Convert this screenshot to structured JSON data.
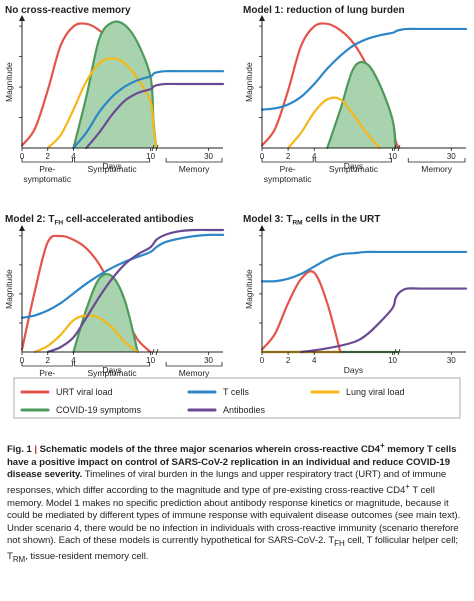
{
  "colors": {
    "urt": "#e5544a",
    "tcells": "#2c86c8",
    "lung": "#f5b719",
    "covid": "#4f9a5a",
    "covid_fill": "#a9d3ae",
    "antibodies": "#6b4a94",
    "axis": "#231f20"
  },
  "chart_data": [
    {
      "type": "line",
      "title": "No cross-reactive memory",
      "ylabel": "Magnitude",
      "xlabel": "Days",
      "xlim": [
        0,
        35
      ],
      "ylim": [
        0,
        1
      ],
      "x_ticks": [
        "0",
        "2",
        "4",
        "10",
        "30"
      ],
      "phases": [
        "Pre-\nsymptomatic",
        "Symptomatic",
        "Memory"
      ],
      "series": [
        {
          "key": "urt",
          "x": [
            0,
            1,
            2,
            3,
            4,
            5,
            6,
            7,
            8,
            9,
            10,
            11,
            12
          ],
          "values": [
            0.02,
            0.15,
            0.45,
            0.8,
            0.95,
            0.97,
            0.92,
            0.82,
            0.65,
            0.42,
            0.2,
            0.06,
            0.0
          ]
        },
        {
          "key": "covid",
          "x": [
            4,
            5,
            6,
            7,
            8,
            9,
            10,
            11,
            12
          ],
          "values": [
            0.0,
            0.4,
            0.85,
            0.98,
            0.96,
            0.82,
            0.55,
            0.2,
            0.0
          ]
        },
        {
          "key": "lung",
          "x": [
            2,
            3,
            4,
            5,
            6,
            7,
            8,
            9,
            10,
            11,
            12
          ],
          "values": [
            0.0,
            0.1,
            0.3,
            0.52,
            0.66,
            0.7,
            0.66,
            0.54,
            0.36,
            0.16,
            0.0
          ]
        },
        {
          "key": "tcells",
          "x": [
            4,
            5,
            6,
            7,
            8,
            9,
            10,
            11,
            12,
            15,
            20,
            25,
            30,
            35
          ],
          "values": [
            0.0,
            0.12,
            0.28,
            0.4,
            0.48,
            0.53,
            0.56,
            0.58,
            0.59,
            0.6,
            0.6,
            0.6,
            0.6,
            0.6
          ]
        },
        {
          "key": "antibodies",
          "x": [
            5,
            6,
            7,
            8,
            9,
            10,
            11,
            12,
            15,
            20,
            25,
            30,
            35
          ],
          "values": [
            0.0,
            0.12,
            0.26,
            0.37,
            0.43,
            0.46,
            0.48,
            0.49,
            0.5,
            0.5,
            0.5,
            0.5,
            0.5
          ]
        }
      ]
    },
    {
      "type": "line",
      "title": "Model 1: reduction of lung burden",
      "ylabel": "Magnitude",
      "xlabel": "Days",
      "xlim": [
        0,
        35
      ],
      "ylim": [
        0,
        1
      ],
      "x_ticks": [
        "0",
        "2",
        "4",
        "10",
        "30"
      ],
      "phases": [
        "Pre-\nsymptomatic",
        "Symptomatic",
        "Memory"
      ],
      "series": [
        {
          "key": "urt",
          "x": [
            0,
            1,
            2,
            3,
            4,
            5,
            6,
            7,
            8,
            9,
            10,
            11,
            12
          ],
          "values": [
            0.02,
            0.15,
            0.45,
            0.8,
            0.95,
            0.97,
            0.92,
            0.82,
            0.65,
            0.42,
            0.2,
            0.06,
            0.0
          ]
        },
        {
          "key": "covid",
          "x": [
            5,
            6,
            7,
            8,
            9,
            10,
            11
          ],
          "values": [
            0.0,
            0.3,
            0.62,
            0.66,
            0.5,
            0.22,
            0.0
          ]
        },
        {
          "key": "lung",
          "x": [
            2,
            3,
            4,
            5,
            6,
            7,
            8,
            9
          ],
          "values": [
            0.0,
            0.12,
            0.28,
            0.38,
            0.38,
            0.26,
            0.12,
            0.0
          ]
        },
        {
          "key": "tcells",
          "x": [
            0,
            1,
            2,
            3,
            4,
            5,
            6,
            7,
            8,
            9,
            10,
            11,
            12,
            15,
            20,
            25,
            30,
            35
          ],
          "values": [
            0.3,
            0.31,
            0.34,
            0.4,
            0.5,
            0.62,
            0.72,
            0.8,
            0.85,
            0.88,
            0.9,
            0.91,
            0.92,
            0.93,
            0.93,
            0.93,
            0.93,
            0.93
          ]
        }
      ]
    },
    {
      "type": "line",
      "title": "Model 2: ",
      "title_main": "T",
      "title_sub": "FH",
      "title_rest": " cell-accelerated antibodies",
      "ylabel": "Magnitude",
      "xlabel": "Days",
      "xlim": [
        0,
        35
      ],
      "ylim": [
        0,
        1
      ],
      "x_ticks": [
        "0",
        "2",
        "4",
        "10",
        "30"
      ],
      "phases": [
        "Pre-\nsymptomatic",
        "Symptomatic",
        "Memory"
      ],
      "series": [
        {
          "key": "urt",
          "x": [
            0,
            1,
            2,
            3,
            4,
            5,
            6,
            7,
            8,
            9,
            10
          ],
          "values": [
            0.02,
            0.5,
            0.9,
            0.95,
            0.92,
            0.85,
            0.72,
            0.52,
            0.3,
            0.1,
            0.0
          ]
        },
        {
          "key": "covid",
          "x": [
            4,
            5,
            6,
            7,
            8,
            9
          ],
          "values": [
            0.0,
            0.35,
            0.6,
            0.62,
            0.42,
            0.0
          ]
        },
        {
          "key": "lung",
          "x": [
            1,
            2,
            3,
            4,
            5,
            6,
            7,
            8,
            9
          ],
          "values": [
            0.0,
            0.05,
            0.14,
            0.26,
            0.3,
            0.28,
            0.2,
            0.08,
            0.0
          ]
        },
        {
          "key": "tcells",
          "x": [
            0,
            1,
            2,
            3,
            4,
            5,
            6,
            7,
            8,
            9,
            10,
            12,
            15,
            20,
            25,
            30,
            35
          ],
          "values": [
            0.28,
            0.3,
            0.34,
            0.4,
            0.48,
            0.56,
            0.63,
            0.69,
            0.74,
            0.78,
            0.82,
            0.86,
            0.9,
            0.93,
            0.95,
            0.96,
            0.96
          ]
        },
        {
          "key": "antibodies",
          "x": [
            2,
            3,
            4,
            5,
            6,
            7,
            8,
            9,
            10,
            12,
            15,
            20,
            25,
            30,
            35
          ],
          "values": [
            0.0,
            0.04,
            0.12,
            0.28,
            0.45,
            0.6,
            0.72,
            0.8,
            0.86,
            0.92,
            0.96,
            0.99,
            1.0,
            1.0,
            1.0
          ]
        }
      ]
    },
    {
      "type": "line",
      "title": "Model 3: ",
      "title_main": "T",
      "title_sub": "RM",
      "title_rest": " cells in the URT",
      "ylabel": "Magnitude",
      "xlabel": "Days",
      "xlim": [
        0,
        35
      ],
      "ylim": [
        0,
        1
      ],
      "x_ticks": [
        "0",
        "2",
        "4",
        "10",
        "30"
      ],
      "phases": [],
      "series": [
        {
          "key": "covid",
          "x": [
            0,
            12
          ],
          "values": [
            0.0,
            0.0
          ]
        },
        {
          "key": "lung",
          "x": [
            0,
            6
          ],
          "values": [
            0.0,
            0.0
          ]
        },
        {
          "key": "urt",
          "x": [
            0,
            1,
            2,
            3,
            4,
            5,
            6
          ],
          "values": [
            0.02,
            0.15,
            0.4,
            0.6,
            0.65,
            0.4,
            0.0
          ]
        },
        {
          "key": "tcells",
          "x": [
            0,
            1,
            2,
            3,
            4,
            5,
            6,
            7,
            8,
            9,
            10,
            15,
            20,
            25,
            30,
            35
          ],
          "values": [
            0.58,
            0.58,
            0.6,
            0.64,
            0.7,
            0.76,
            0.8,
            0.81,
            0.82,
            0.82,
            0.82,
            0.82,
            0.82,
            0.82,
            0.82,
            0.82
          ]
        },
        {
          "key": "antibodies",
          "x": [
            3,
            5,
            7,
            8,
            9,
            10,
            11,
            12,
            13,
            15,
            20,
            25,
            30,
            35
          ],
          "values": [
            0.0,
            0.03,
            0.08,
            0.14,
            0.24,
            0.36,
            0.44,
            0.48,
            0.5,
            0.52,
            0.52,
            0.52,
            0.52,
            0.52
          ]
        }
      ]
    }
  ],
  "legend": [
    {
      "key": "urt",
      "label": "URT viral load"
    },
    {
      "key": "tcells",
      "label": "T cells"
    },
    {
      "key": "lung",
      "label": "Lung viral load"
    },
    {
      "key": "covid",
      "label": "COVID-19 symptoms"
    },
    {
      "key": "antibodies",
      "label": "Antibodies"
    }
  ],
  "caption": {
    "label": "Fig. 1",
    "separator": "|",
    "lead_a": "Schematic models of the three major scenarios wherein cross-reactive CD4",
    "lead_sup": "+",
    "lead_b": " memory T cells have a positive impact on control of SARS-CoV-2 replication in an individual and reduce COVID-19 disease severity.",
    "body_a": " Timelines of viral burden in the lungs and upper respiratory tract (URT) and of immune responses, which differ according to the magnitude and type of pre-existing cross-reactive CD4",
    "body_sup": "+",
    "body_b": " T cell memory. Model 1 makes no specific prediction about antibody response kinetics or magnitude, because it could be mediated by different types of immune response with equivalent disease outcomes (see main text). Under scenario 4, there would be no infection in individuals with cross-reactive immunity (scenario therefore not shown). Each of these models is currently hypothetical for SARS-CoV-2. T",
    "body_sub1": "FH",
    "body_c": " cell, T follicular helper cell; T",
    "body_sub2": "RM",
    "body_d": ", tissue-resident memory cell."
  }
}
